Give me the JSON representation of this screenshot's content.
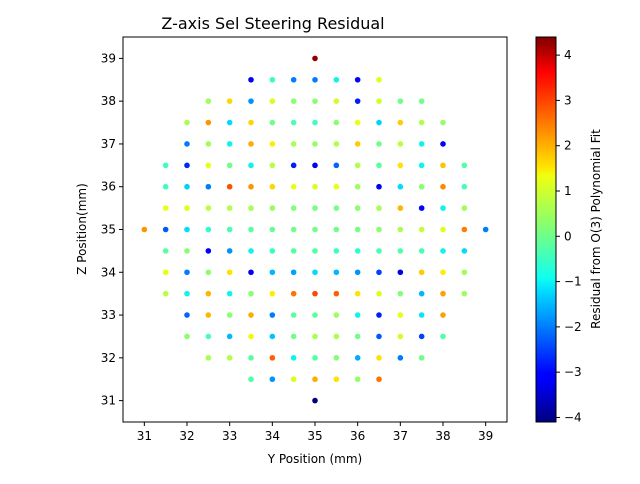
{
  "chart_data": {
    "type": "scatter",
    "title": "Z-axis Sel Steering Residual",
    "xlabel": "Y Position (mm)",
    "ylabel": "Z Position(mm)",
    "xlim": [
      30.5,
      39.5
    ],
    "ylim": [
      30.5,
      39.5
    ],
    "xticks": [
      31,
      32,
      33,
      34,
      35,
      36,
      37,
      38,
      39
    ],
    "yticks": [
      31,
      32,
      33,
      34,
      35,
      36,
      37,
      38,
      39
    ],
    "grid": false,
    "colorbar": {
      "label": "Residual from O(3) Polynomial Fit",
      "colormap": "jet",
      "range": [
        -4.1,
        4.4
      ],
      "ticks": [
        -4,
        -3,
        -2,
        -1,
        0,
        1,
        2,
        3,
        4
      ]
    },
    "points": [
      {
        "y": 35.0,
        "z": 39.0,
        "r": 4.3
      },
      {
        "y": 35.0,
        "z": 31.0,
        "r": -4.1
      },
      {
        "y": 31.0,
        "z": 35.0,
        "r": 2.3
      },
      {
        "y": 39.0,
        "z": 35.0,
        "r": -2.0
      },
      {
        "y": 33.5,
        "z": 38.5,
        "r": -3.2
      },
      {
        "y": 34.0,
        "z": 38.5,
        "r": -0.6
      },
      {
        "y": 34.5,
        "z": 38.5,
        "r": -2.0
      },
      {
        "y": 35.0,
        "z": 38.5,
        "r": -2.0
      },
      {
        "y": 35.5,
        "z": 38.5,
        "r": -1.0
      },
      {
        "y": 36.0,
        "z": 38.5,
        "r": -3.0
      },
      {
        "y": 36.5,
        "z": 38.5,
        "r": 1.2
      },
      {
        "y": 32.5,
        "z": 38.0,
        "r": 0.5
      },
      {
        "y": 33.0,
        "z": 38.0,
        "r": 1.7
      },
      {
        "y": 33.5,
        "z": 38.0,
        "r": -1.8
      },
      {
        "y": 34.0,
        "z": 38.0,
        "r": 1.1
      },
      {
        "y": 34.5,
        "z": 38.0,
        "r": 0.3
      },
      {
        "y": 35.0,
        "z": 38.0,
        "r": 0.3
      },
      {
        "y": 35.5,
        "z": 38.0,
        "r": 1.0
      },
      {
        "y": 36.0,
        "z": 38.0,
        "r": -2.8
      },
      {
        "y": 36.5,
        "z": 38.0,
        "r": 1.0
      },
      {
        "y": 37.0,
        "z": 38.0,
        "r": 0.0
      },
      {
        "y": 37.5,
        "z": 38.0,
        "r": 0.0
      },
      {
        "y": 32.0,
        "z": 37.5,
        "r": 0.6
      },
      {
        "y": 32.5,
        "z": 37.5,
        "r": 2.3
      },
      {
        "y": 33.0,
        "z": 37.5,
        "r": -1.2
      },
      {
        "y": 33.5,
        "z": 37.5,
        "r": 1.7
      },
      {
        "y": 34.0,
        "z": 37.5,
        "r": 0.0
      },
      {
        "y": 34.5,
        "z": 37.5,
        "r": -0.4
      },
      {
        "y": 35.0,
        "z": 37.5,
        "r": -0.5
      },
      {
        "y": 35.5,
        "z": 37.5,
        "r": 0.3
      },
      {
        "y": 36.0,
        "z": 37.5,
        "r": 1.3
      },
      {
        "y": 36.5,
        "z": 37.5,
        "r": -1.3
      },
      {
        "y": 37.0,
        "z": 37.5,
        "r": 1.8
      },
      {
        "y": 37.5,
        "z": 37.5,
        "r": 0.7
      },
      {
        "y": 38.0,
        "z": 37.5,
        "r": 0.4
      },
      {
        "y": 32.0,
        "z": 37.0,
        "r": -2.0
      },
      {
        "y": 32.5,
        "z": 37.0,
        "r": 0.5
      },
      {
        "y": 33.0,
        "z": 37.0,
        "r": -1.0
      },
      {
        "y": 33.5,
        "z": 37.0,
        "r": 2.1
      },
      {
        "y": 34.0,
        "z": 37.0,
        "r": 1.5
      },
      {
        "y": 34.5,
        "z": 37.0,
        "r": 0.6
      },
      {
        "y": 35.0,
        "z": 37.0,
        "r": 0.4
      },
      {
        "y": 35.5,
        "z": 37.0,
        "r": 0.7
      },
      {
        "y": 36.0,
        "z": 37.0,
        "r": 1.8
      },
      {
        "y": 36.5,
        "z": 37.0,
        "r": 0.0
      },
      {
        "y": 37.0,
        "z": 37.0,
        "r": 0.8
      },
      {
        "y": 37.5,
        "z": 37.0,
        "r": -1.0
      },
      {
        "y": 38.0,
        "z": 37.0,
        "r": -3.2
      },
      {
        "y": 31.5,
        "z": 36.5,
        "r": -0.5
      },
      {
        "y": 32.0,
        "z": 36.5,
        "r": -2.7
      },
      {
        "y": 32.5,
        "z": 36.5,
        "r": 1.3
      },
      {
        "y": 33.0,
        "z": 36.5,
        "r": 0.0
      },
      {
        "y": 33.5,
        "z": 36.5,
        "r": -1.0
      },
      {
        "y": 34.0,
        "z": 36.5,
        "r": 0.8
      },
      {
        "y": 34.5,
        "z": 36.5,
        "r": -2.8
      },
      {
        "y": 35.0,
        "z": 36.5,
        "r": -3.1
      },
      {
        "y": 35.5,
        "z": 36.5,
        "r": -2.2
      },
      {
        "y": 36.0,
        "z": 36.5,
        "r": 0.7
      },
      {
        "y": 36.5,
        "z": 36.5,
        "r": -0.2
      },
      {
        "y": 37.0,
        "z": 36.5,
        "r": 1.6
      },
      {
        "y": 37.5,
        "z": 36.5,
        "r": -1.0
      },
      {
        "y": 38.0,
        "z": 36.5,
        "r": 1.9
      },
      {
        "y": 38.5,
        "z": 36.5,
        "r": -0.3
      },
      {
        "y": 31.5,
        "z": 36.0,
        "r": -0.5
      },
      {
        "y": 32.0,
        "z": 36.0,
        "r": -1.3
      },
      {
        "y": 32.5,
        "z": 36.0,
        "r": -2.0
      },
      {
        "y": 33.0,
        "z": 36.0,
        "r": 2.9
      },
      {
        "y": 33.5,
        "z": 36.0,
        "r": 2.3
      },
      {
        "y": 34.0,
        "z": 36.0,
        "r": 1.7
      },
      {
        "y": 34.5,
        "z": 36.0,
        "r": 1.3
      },
      {
        "y": 35.0,
        "z": 36.0,
        "r": 1.1
      },
      {
        "y": 35.5,
        "z": 36.0,
        "r": 1.3
      },
      {
        "y": 36.0,
        "z": 36.0,
        "r": 0.5
      },
      {
        "y": 36.5,
        "z": 36.0,
        "r": -3.2
      },
      {
        "y": 37.0,
        "z": 36.0,
        "r": -1.2
      },
      {
        "y": 37.5,
        "z": 36.0,
        "r": 0.3
      },
      {
        "y": 38.0,
        "z": 36.0,
        "r": 2.4
      },
      {
        "y": 38.5,
        "z": 36.0,
        "r": -0.4
      },
      {
        "y": 31.5,
        "z": 35.5,
        "r": 1.3
      },
      {
        "y": 32.0,
        "z": 35.5,
        "r": 1.2
      },
      {
        "y": 32.5,
        "z": 35.5,
        "r": 0.8
      },
      {
        "y": 33.0,
        "z": 35.5,
        "r": 0.7
      },
      {
        "y": 33.5,
        "z": 35.5,
        "r": 0.6
      },
      {
        "y": 34.0,
        "z": 35.5,
        "r": 0.4
      },
      {
        "y": 34.5,
        "z": 35.5,
        "r": 0.2
      },
      {
        "y": 35.0,
        "z": 35.5,
        "r": 0.1
      },
      {
        "y": 35.5,
        "z": 35.5,
        "r": 0.1
      },
      {
        "y": 36.0,
        "z": 35.5,
        "r": 0.3
      },
      {
        "y": 36.5,
        "z": 35.5,
        "r": 0.6
      },
      {
        "y": 37.0,
        "z": 35.5,
        "r": 2.0
      },
      {
        "y": 37.5,
        "z": 35.5,
        "r": -3.0
      },
      {
        "y": 38.0,
        "z": 35.5,
        "r": -1.0
      },
      {
        "y": 38.5,
        "z": 35.5,
        "r": 0.5
      },
      {
        "y": 31.5,
        "z": 35.0,
        "r": -2.3
      },
      {
        "y": 32.0,
        "z": 35.0,
        "r": -1.2
      },
      {
        "y": 32.5,
        "z": 35.0,
        "r": -0.7
      },
      {
        "y": 33.0,
        "z": 35.0,
        "r": -0.4
      },
      {
        "y": 33.5,
        "z": 35.0,
        "r": -0.2
      },
      {
        "y": 34.0,
        "z": 35.0,
        "r": -0.1
      },
      {
        "y": 34.5,
        "z": 35.0,
        "r": 0.0
      },
      {
        "y": 35.0,
        "z": 35.0,
        "r": 0.0
      },
      {
        "y": 35.5,
        "z": 35.0,
        "r": 0.0
      },
      {
        "y": 36.0,
        "z": 35.0,
        "r": 0.1
      },
      {
        "y": 36.5,
        "z": 35.0,
        "r": 0.3
      },
      {
        "y": 37.0,
        "z": 35.0,
        "r": 0.6
      },
      {
        "y": 37.5,
        "z": 35.0,
        "r": 0.9
      },
      {
        "y": 38.0,
        "z": 35.0,
        "r": 1.2
      },
      {
        "y": 38.5,
        "z": 35.0,
        "r": 2.5
      },
      {
        "y": 31.5,
        "z": 34.5,
        "r": -0.2
      },
      {
        "y": 32.0,
        "z": 34.5,
        "r": 0.3
      },
      {
        "y": 32.5,
        "z": 34.5,
        "r": -3.2
      },
      {
        "y": 33.0,
        "z": 34.5,
        "r": -1.8
      },
      {
        "y": 33.5,
        "z": 34.5,
        "r": -1.0
      },
      {
        "y": 34.0,
        "z": 34.5,
        "r": -0.6
      },
      {
        "y": 34.5,
        "z": 34.5,
        "r": -0.3
      },
      {
        "y": 35.0,
        "z": 34.5,
        "r": -0.3
      },
      {
        "y": 35.5,
        "z": 34.5,
        "r": -0.5
      },
      {
        "y": 36.0,
        "z": 34.5,
        "r": -0.7
      },
      {
        "y": 36.5,
        "z": 34.5,
        "r": -0.4
      },
      {
        "y": 37.0,
        "z": 34.5,
        "r": -0.3
      },
      {
        "y": 37.5,
        "z": 34.5,
        "r": -0.4
      },
      {
        "y": 38.0,
        "z": 34.5,
        "r": -1.0
      },
      {
        "y": 38.5,
        "z": 34.5,
        "r": -1.2
      },
      {
        "y": 31.5,
        "z": 34.0,
        "r": 1.3
      },
      {
        "y": 32.0,
        "z": 34.0,
        "r": -2.0
      },
      {
        "y": 32.5,
        "z": 34.0,
        "r": 0.3
      },
      {
        "y": 33.0,
        "z": 34.0,
        "r": 1.6
      },
      {
        "y": 33.5,
        "z": 34.0,
        "r": -3.2
      },
      {
        "y": 34.0,
        "z": 34.0,
        "r": -1.5
      },
      {
        "y": 34.5,
        "z": 34.0,
        "r": -1.7
      },
      {
        "y": 35.0,
        "z": 34.0,
        "r": -1.2
      },
      {
        "y": 35.5,
        "z": 34.0,
        "r": -1.5
      },
      {
        "y": 36.0,
        "z": 34.0,
        "r": -1.8
      },
      {
        "y": 36.5,
        "z": 34.0,
        "r": -2.5
      },
      {
        "y": 37.0,
        "z": 34.0,
        "r": -3.3
      },
      {
        "y": 37.5,
        "z": 34.0,
        "r": 1.8
      },
      {
        "y": 38.0,
        "z": 34.0,
        "r": 1.5
      },
      {
        "y": 38.5,
        "z": 34.0,
        "r": 0.5
      },
      {
        "y": 31.5,
        "z": 33.5,
        "r": 0.8
      },
      {
        "y": 32.0,
        "z": 33.5,
        "r": -1.0
      },
      {
        "y": 32.5,
        "z": 33.5,
        "r": 2.0
      },
      {
        "y": 33.0,
        "z": 33.5,
        "r": -1.0
      },
      {
        "y": 33.5,
        "z": 33.5,
        "r": 0.3
      },
      {
        "y": 34.0,
        "z": 33.5,
        "r": 1.5
      },
      {
        "y": 34.5,
        "z": 33.5,
        "r": 2.6
      },
      {
        "y": 35.0,
        "z": 33.5,
        "r": 3.0
      },
      {
        "y": 35.5,
        "z": 33.5,
        "r": 2.8
      },
      {
        "y": 36.0,
        "z": 33.5,
        "r": 1.6
      },
      {
        "y": 36.5,
        "z": 33.5,
        "r": 1.2
      },
      {
        "y": 37.0,
        "z": 33.5,
        "r": 0.2
      },
      {
        "y": 37.5,
        "z": 33.5,
        "r": -1.5
      },
      {
        "y": 38.0,
        "z": 33.5,
        "r": 2.2
      },
      {
        "y": 38.5,
        "z": 33.5,
        "r": 0.5
      },
      {
        "y": 32.0,
        "z": 33.0,
        "r": -2.2
      },
      {
        "y": 32.5,
        "z": 33.0,
        "r": 2.0
      },
      {
        "y": 33.0,
        "z": 33.0,
        "r": 0.3
      },
      {
        "y": 33.5,
        "z": 33.0,
        "r": 2.1
      },
      {
        "y": 34.0,
        "z": 33.0,
        "r": -2.0
      },
      {
        "y": 34.5,
        "z": 33.0,
        "r": -0.2
      },
      {
        "y": 35.0,
        "z": 33.0,
        "r": -0.2
      },
      {
        "y": 35.5,
        "z": 33.0,
        "r": 0.5
      },
      {
        "y": 36.0,
        "z": 33.0,
        "r": -1.0
      },
      {
        "y": 36.5,
        "z": 33.0,
        "r": -2.8
      },
      {
        "y": 37.0,
        "z": 33.0,
        "r": 1.3
      },
      {
        "y": 37.5,
        "z": 33.0,
        "r": -1.1
      },
      {
        "y": 38.0,
        "z": 33.0,
        "r": 2.2
      },
      {
        "y": 32.0,
        "z": 32.5,
        "r": 0.3
      },
      {
        "y": 32.5,
        "z": 32.5,
        "r": -0.4
      },
      {
        "y": 33.0,
        "z": 32.5,
        "r": -1.5
      },
      {
        "y": 33.5,
        "z": 32.5,
        "r": 1.4
      },
      {
        "y": 34.0,
        "z": 32.5,
        "r": -1.4
      },
      {
        "y": 34.5,
        "z": 32.5,
        "r": 0.0
      },
      {
        "y": 35.0,
        "z": 32.5,
        "r": 0.6
      },
      {
        "y": 35.5,
        "z": 32.5,
        "r": 0.6
      },
      {
        "y": 36.0,
        "z": 32.5,
        "r": 0.0
      },
      {
        "y": 36.5,
        "z": 32.5,
        "r": -2.3
      },
      {
        "y": 37.0,
        "z": 32.5,
        "r": 1.0
      },
      {
        "y": 37.5,
        "z": 32.5,
        "r": -2.5
      },
      {
        "y": 38.0,
        "z": 32.5,
        "r": -0.3
      },
      {
        "y": 32.5,
        "z": 32.0,
        "r": 0.6
      },
      {
        "y": 33.0,
        "z": 32.0,
        "r": 0.7
      },
      {
        "y": 33.5,
        "z": 32.0,
        "r": -0.2
      },
      {
        "y": 34.0,
        "z": 32.0,
        "r": 2.8
      },
      {
        "y": 34.5,
        "z": 32.0,
        "r": -1.0
      },
      {
        "y": 35.0,
        "z": 32.0,
        "r": -0.3
      },
      {
        "y": 35.5,
        "z": 32.0,
        "r": 0.2
      },
      {
        "y": 36.0,
        "z": 32.0,
        "r": -1.6
      },
      {
        "y": 36.5,
        "z": 32.0,
        "r": 1.6
      },
      {
        "y": 37.0,
        "z": 32.0,
        "r": -2.0
      },
      {
        "y": 37.5,
        "z": 32.0,
        "r": 0.0
      },
      {
        "y": 33.5,
        "z": 31.5,
        "r": -0.3
      },
      {
        "y": 34.0,
        "z": 31.5,
        "r": -1.8
      },
      {
        "y": 34.5,
        "z": 31.5,
        "r": 1.1
      },
      {
        "y": 35.0,
        "z": 31.5,
        "r": 2.1
      },
      {
        "y": 35.5,
        "z": 31.5,
        "r": 1.6
      },
      {
        "y": 36.0,
        "z": 31.5,
        "r": 0.4
      },
      {
        "y": 36.5,
        "z": 31.5,
        "r": 2.6
      }
    ]
  }
}
